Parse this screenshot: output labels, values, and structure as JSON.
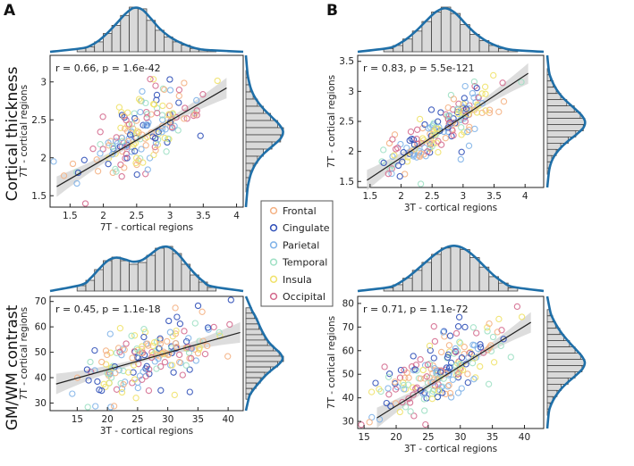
{
  "panel_labels": [
    "A",
    "B"
  ],
  "row_labels": [
    "Cortical thickness",
    "GM/WM contrast"
  ],
  "legend": {
    "items": [
      {
        "label": "Frontal",
        "color": "#f4b183"
      },
      {
        "label": "Cingulate",
        "color": "#3050b8"
      },
      {
        "label": "Parietal",
        "color": "#7fb2e8"
      },
      {
        "label": "Temporal",
        "color": "#9fe0c4"
      },
      {
        "label": "Insula",
        "color": "#f0e26a"
      },
      {
        "label": "Occipital",
        "color": "#d46a8e"
      }
    ]
  },
  "chart_data": [
    {
      "type": "scatter",
      "panel": "A",
      "row": "Cortical thickness",
      "title": "r = 0.66, p = 1.6e-42",
      "xlabel": "7T - cortical regions",
      "ylabel": "7T - cortical regions",
      "xlim": [
        1.2,
        4.1
      ],
      "ylim": [
        1.35,
        3.35
      ],
      "xticks": [
        "1.5",
        "2",
        "2.5",
        "3",
        "3.5",
        "4"
      ],
      "xtick_values": [
        1.5,
        2,
        2.5,
        3,
        3.5,
        4
      ],
      "yticks": [
        "1.5",
        "2",
        "2.5",
        "3"
      ],
      "ytick_values": [
        1.5,
        2,
        2.5,
        3
      ],
      "n_points": 180,
      "x_mean": 2.55,
      "x_sd": 0.42,
      "y_mean": 2.3,
      "y_sd": 0.34,
      "r": 0.66,
      "fit_line": {
        "x": [
          1.3,
          3.85
        ],
        "y": [
          1.62,
          2.92
        ]
      },
      "marginal_x_hist": [
        2,
        3,
        6,
        11,
        16,
        22,
        27,
        26,
        19,
        13,
        9,
        6,
        4,
        2,
        1,
        1
      ],
      "marginal_y_hist": [
        1,
        2,
        3,
        5,
        8,
        12,
        17,
        22,
        26,
        24,
        18,
        12,
        8,
        5,
        3,
        2,
        1
      ]
    },
    {
      "type": "scatter",
      "panel": "B",
      "row": "Cortical thickness",
      "title": "r = 0.83, p = 5.5e-121",
      "xlabel": "3T - cortical regions",
      "ylabel": "7T - cortical regions",
      "xlim": [
        1.3,
        4.3
      ],
      "ylim": [
        1.4,
        3.6
      ],
      "xticks": [
        "1.5",
        "2",
        "2.5",
        "3",
        "3.5",
        "4"
      ],
      "xtick_values": [
        1.5,
        2,
        2.5,
        3,
        3.5,
        4
      ],
      "yticks": [
        "1.5",
        "2",
        "2.5",
        "3",
        "3.5"
      ],
      "ytick_values": [
        1.5,
        2,
        2.5,
        3,
        3.5
      ],
      "n_points": 180,
      "x_mean": 2.6,
      "x_sd": 0.45,
      "y_mean": 2.35,
      "y_sd": 0.36,
      "r": 0.83,
      "fit_line": {
        "x": [
          1.45,
          4.05
        ],
        "y": [
          1.52,
          3.3
        ]
      },
      "marginal_x_hist": [
        2,
        4,
        8,
        13,
        19,
        25,
        28,
        24,
        17,
        11,
        7,
        4,
        2,
        1
      ],
      "marginal_y_hist": [
        1,
        2,
        4,
        6,
        9,
        13,
        18,
        22,
        25,
        24,
        19,
        14,
        9,
        6,
        3,
        2,
        1
      ]
    },
    {
      "type": "scatter",
      "panel": "A",
      "row": "GM/WM contrast",
      "title": "r = 0.45, p = 1.1e-18",
      "xlabel": "3T - cortical regions",
      "ylabel": "7T - cortical regions",
      "xlim": [
        10.5,
        42.5
      ],
      "ylim": [
        27,
        72
      ],
      "xticks": [
        "15",
        "20",
        "25",
        "30",
        "35",
        "40"
      ],
      "xtick_values": [
        15,
        20,
        25,
        30,
        35,
        40
      ],
      "yticks": [
        "30",
        "40",
        "50",
        "60",
        "70"
      ],
      "ytick_values": [
        30,
        40,
        50,
        60,
        70
      ],
      "n_points": 180,
      "x_mean": 27.5,
      "x_sd": 5.4,
      "y_mean": 49,
      "y_sd": 8,
      "r": 0.45,
      "fit_line": {
        "x": [
          11.5,
          42
        ],
        "y": [
          37.5,
          57.8
        ]
      },
      "marginal_x_hist": [
        3,
        6,
        12,
        17,
        19,
        17,
        15,
        16,
        20,
        24,
        25,
        21,
        15,
        9,
        5,
        2
      ],
      "marginal_y_hist": [
        4,
        6,
        8,
        9,
        11,
        13,
        15,
        19,
        23,
        26,
        22,
        17,
        13,
        10,
        7,
        4,
        2
      ]
    },
    {
      "type": "scatter",
      "panel": "B",
      "row": "GM/WM contrast",
      "title": "r = 0.71, p = 1.1e-72",
      "xlabel": "3T - cortical regions",
      "ylabel": "7T - cortical regions",
      "xlim": [
        14,
        43
      ],
      "ylim": [
        27,
        83
      ],
      "xticks": [
        "15",
        "20",
        "25",
        "30",
        "35",
        "40"
      ],
      "xtick_values": [
        15,
        20,
        25,
        30,
        35,
        40
      ],
      "yticks": [
        "30",
        "40",
        "50",
        "60",
        "70",
        "80"
      ],
      "ytick_values": [
        30,
        40,
        50,
        60,
        70,
        80
      ],
      "n_points": 200,
      "x_mean": 27,
      "x_sd": 5.2,
      "y_mean": 52,
      "y_sd": 10.5,
      "r": 0.71,
      "fit_line": {
        "x": [
          17,
          41
        ],
        "y": [
          31.5,
          72
        ]
      },
      "marginal_x_hist": [
        2,
        4,
        8,
        13,
        18,
        23,
        27,
        28,
        26,
        21,
        15,
        9,
        5,
        2
      ],
      "marginal_y_hist": [
        2,
        4,
        6,
        9,
        12,
        16,
        20,
        24,
        27,
        25,
        20,
        15,
        10,
        7,
        4,
        2,
        1
      ]
    }
  ]
}
